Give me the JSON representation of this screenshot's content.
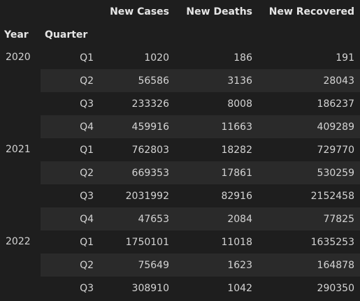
{
  "columns": [
    "New Cases",
    "New Deaths",
    "New Recovered"
  ],
  "index_names": [
    "Year",
    "Quarter"
  ],
  "groups": [
    {
      "year": "2020",
      "rows": [
        {
          "quarter": "Q1",
          "values": [
            "1020",
            "186",
            "191"
          ]
        },
        {
          "quarter": "Q2",
          "values": [
            "56586",
            "3136",
            "28043"
          ]
        },
        {
          "quarter": "Q3",
          "values": [
            "233326",
            "8008",
            "186237"
          ]
        },
        {
          "quarter": "Q4",
          "values": [
            "459916",
            "11663",
            "409289"
          ]
        }
      ]
    },
    {
      "year": "2021",
      "rows": [
        {
          "quarter": "Q1",
          "values": [
            "762803",
            "18282",
            "729770"
          ]
        },
        {
          "quarter": "Q2",
          "values": [
            "669353",
            "17861",
            "530259"
          ]
        },
        {
          "quarter": "Q3",
          "values": [
            "2031992",
            "82916",
            "2152458"
          ]
        },
        {
          "quarter": "Q4",
          "values": [
            "47653",
            "2084",
            "77825"
          ]
        }
      ]
    },
    {
      "year": "2022",
      "rows": [
        {
          "quarter": "Q1",
          "values": [
            "1750101",
            "11018",
            "1635253"
          ]
        },
        {
          "quarter": "Q2",
          "values": [
            "75649",
            "1623",
            "164878"
          ]
        },
        {
          "quarter": "Q3",
          "values": [
            "308910",
            "1042",
            "290350"
          ]
        }
      ]
    }
  ]
}
